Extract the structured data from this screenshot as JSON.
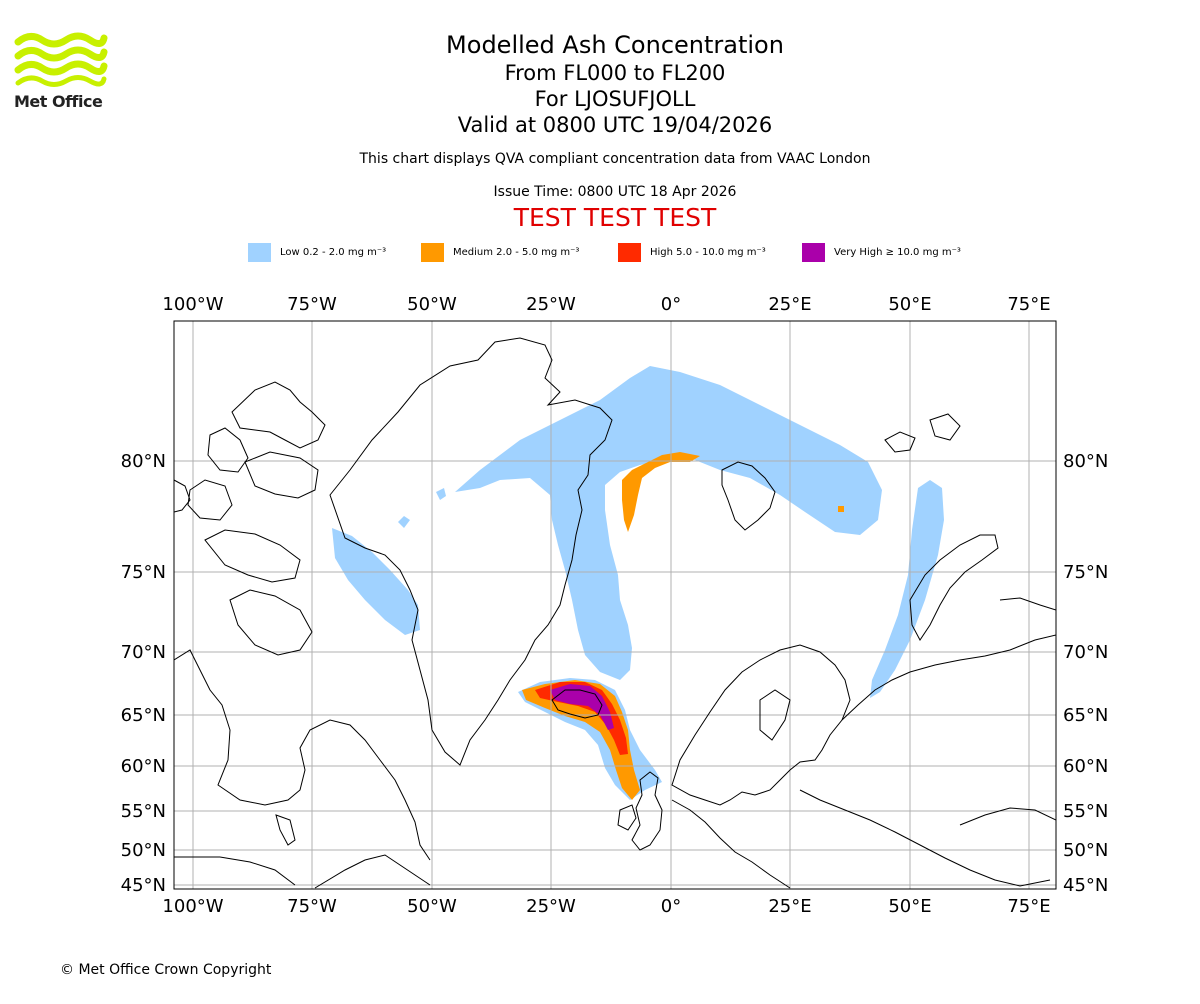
{
  "header": {
    "logo_text": "Met Office",
    "title": "Modelled Ash Concentration",
    "levels": "From FL000 to FL200",
    "volcano": "For LJOSUFJOLL",
    "valid": "Valid at 0800 UTC 19/04/2026",
    "note": "This chart displays QVA compliant concentration data from VAAC London",
    "issue_time": "Issue Time: 0800 UTC 18 Apr 2026",
    "test_banner": "TEST TEST TEST"
  },
  "legend": [
    {
      "label": "Low 0.2 - 2.0 mg m⁻³",
      "color": "#a0d2ff"
    },
    {
      "label": "Medium 2.0 - 5.0 mg m⁻³",
      "color": "#ff9900"
    },
    {
      "label": "High 5.0 - 10.0 mg m⁻³",
      "color": "#ff2a00"
    },
    {
      "label": "Very High  ≥  10.0 mg m⁻³",
      "color": "#aa00aa"
    }
  ],
  "map": {
    "lon_labels": [
      "100°W",
      "75°W",
      "50°W",
      "25°W",
      "0°",
      "25°E",
      "50°E",
      "75°E"
    ],
    "lat_labels": [
      "80°N",
      "75°N",
      "70°N",
      "65°N",
      "60°N",
      "55°N",
      "50°N",
      "45°N"
    ],
    "gridlines": true,
    "colors": {
      "gridline": "#b0b0b0",
      "coastline": "#000000",
      "frame": "#000000"
    }
  },
  "footer": {
    "copyright": "© Met Office Crown Copyright"
  }
}
